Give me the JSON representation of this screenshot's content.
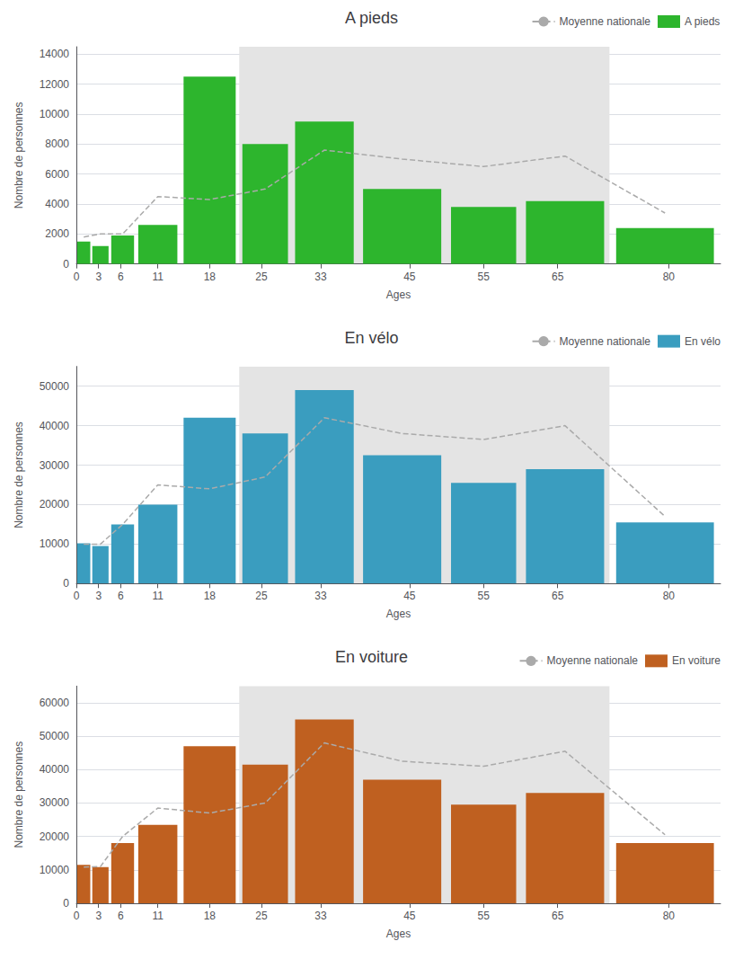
{
  "chart_data": [
    {
      "type": "bar",
      "title": "A pieds",
      "xlabel": "Ages",
      "ylabel": "Nombre de personnes",
      "bins": [
        0,
        2,
        4.5,
        8,
        14,
        22,
        29,
        38,
        50,
        60,
        72,
        87
      ],
      "xlim": [
        0,
        87
      ],
      "xticks": [
        0,
        3,
        6,
        11,
        18,
        25,
        33,
        45,
        55,
        65,
        80
      ],
      "ylim": [
        0,
        14500
      ],
      "yticks": [
        0,
        2000,
        4000,
        6000,
        8000,
        10000,
        12000,
        14000
      ],
      "grid": true,
      "legend": "upper right",
      "spans": [
        {
          "range": [
            22,
            72
          ],
          "color": "#e4e4e4"
        }
      ],
      "series": [
        {
          "name": "Moyenne nationale",
          "type": "line",
          "line_style": "dashed",
          "color": "#aaaaaa",
          "x": [
            1,
            3.25,
            6.25,
            11,
            18,
            25.5,
            33.5,
            44,
            55,
            66,
            79.5
          ],
          "values": [
            1800,
            2000,
            2000,
            4500,
            4300,
            5000,
            7600,
            7000,
            6500,
            7200,
            3400
          ]
        },
        {
          "name": "A pieds",
          "type": "bar",
          "color": "#2db52d",
          "values": [
            1500,
            1200,
            1900,
            2600,
            12500,
            8000,
            9500,
            5000,
            3800,
            4200,
            2400
          ]
        }
      ]
    },
    {
      "type": "bar",
      "title": "En vélo",
      "xlabel": "Ages",
      "ylabel": "Nombre de personnes",
      "bins": [
        0,
        2,
        4.5,
        8,
        14,
        22,
        29,
        38,
        50,
        60,
        72,
        87
      ],
      "xlim": [
        0,
        87
      ],
      "xticks": [
        0,
        3,
        6,
        11,
        18,
        25,
        33,
        45,
        55,
        65,
        80
      ],
      "ylim": [
        0,
        55000
      ],
      "yticks": [
        0,
        10000,
        20000,
        30000,
        40000,
        50000
      ],
      "grid": true,
      "legend": "upper right",
      "spans": [
        {
          "range": [
            22,
            72
          ],
          "color": "#e4e4e4"
        }
      ],
      "series": [
        {
          "name": "Moyenne nationale",
          "type": "line",
          "line_style": "dashed",
          "color": "#aaaaaa",
          "x": [
            1,
            3.25,
            6.25,
            11,
            18,
            25.5,
            33.5,
            44,
            55,
            66,
            79.5
          ],
          "values": [
            10000,
            10000,
            15000,
            25000,
            24000,
            27000,
            42000,
            38000,
            36500,
            40000,
            17000
          ]
        },
        {
          "name": "En vélo",
          "type": "bar",
          "color": "#3a9dbf",
          "values": [
            10200,
            9500,
            15000,
            20000,
            42000,
            38000,
            49000,
            32500,
            25500,
            29000,
            15500
          ]
        }
      ]
    },
    {
      "type": "bar",
      "title": "En voiture",
      "xlabel": "Ages",
      "ylabel": "Nombre de personnes",
      "bins": [
        0,
        2,
        4.5,
        8,
        14,
        22,
        29,
        38,
        50,
        60,
        72,
        87
      ],
      "xlim": [
        0,
        87
      ],
      "xticks": [
        0,
        3,
        6,
        11,
        18,
        25,
        33,
        45,
        55,
        65,
        80
      ],
      "ylim": [
        0,
        65000
      ],
      "yticks": [
        0,
        10000,
        20000,
        30000,
        40000,
        50000,
        60000
      ],
      "grid": true,
      "legend": "upper right",
      "spans": [
        {
          "range": [
            22,
            72
          ],
          "color": "#e4e4e4"
        }
      ],
      "series": [
        {
          "name": "Moyenne nationale",
          "type": "line",
          "line_style": "dashed",
          "color": "#aaaaaa",
          "x": [
            1,
            3.25,
            6.25,
            11,
            18,
            25.5,
            33.5,
            44,
            55,
            66,
            79.5
          ],
          "values": [
            10800,
            11000,
            20000,
            28500,
            27000,
            30000,
            48000,
            42500,
            41000,
            45500,
            20500
          ]
        },
        {
          "name": "En voiture",
          "type": "bar",
          "color": "#bf6020",
          "values": [
            11500,
            10800,
            18000,
            23500,
            47000,
            41500,
            55000,
            37000,
            29500,
            33000,
            18000
          ]
        }
      ]
    }
  ]
}
